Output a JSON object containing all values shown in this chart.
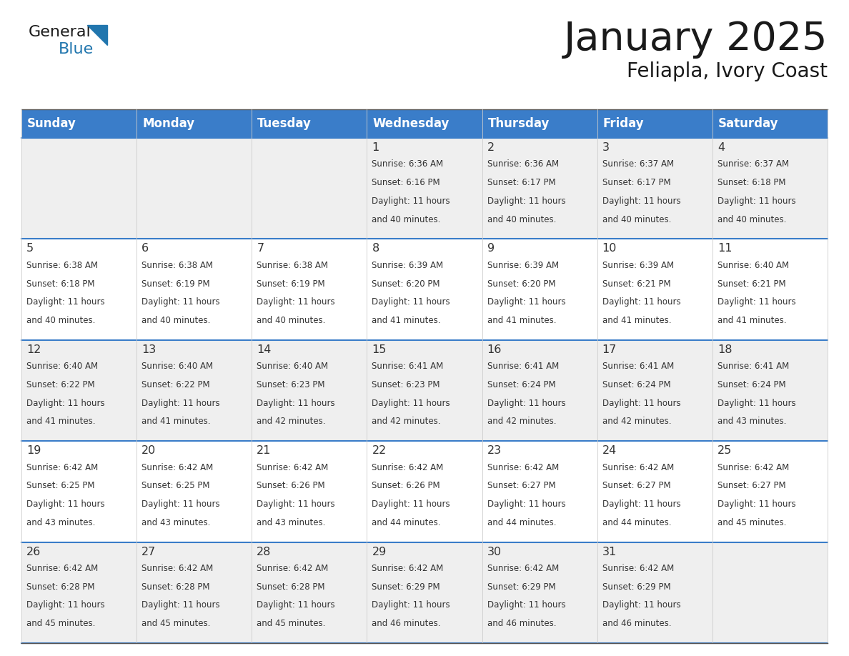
{
  "title": "January 2025",
  "subtitle": "Feliapla, Ivory Coast",
  "header_bg": "#3A7DC9",
  "header_text": "#FFFFFF",
  "row_bg_odd": "#EFEFEF",
  "row_bg_even": "#FFFFFF",
  "blue_line_color": "#3A7DC9",
  "day_headers": [
    "Sunday",
    "Monday",
    "Tuesday",
    "Wednesday",
    "Thursday",
    "Friday",
    "Saturday"
  ],
  "days": [
    {
      "date": 1,
      "col": 3,
      "row": 0,
      "sunrise": "6:36 AM",
      "sunset": "6:16 PM",
      "daylight_h": "11 hours",
      "daylight_m": "and 40 minutes."
    },
    {
      "date": 2,
      "col": 4,
      "row": 0,
      "sunrise": "6:36 AM",
      "sunset": "6:17 PM",
      "daylight_h": "11 hours",
      "daylight_m": "and 40 minutes."
    },
    {
      "date": 3,
      "col": 5,
      "row": 0,
      "sunrise": "6:37 AM",
      "sunset": "6:17 PM",
      "daylight_h": "11 hours",
      "daylight_m": "and 40 minutes."
    },
    {
      "date": 4,
      "col": 6,
      "row": 0,
      "sunrise": "6:37 AM",
      "sunset": "6:18 PM",
      "daylight_h": "11 hours",
      "daylight_m": "and 40 minutes."
    },
    {
      "date": 5,
      "col": 0,
      "row": 1,
      "sunrise": "6:38 AM",
      "sunset": "6:18 PM",
      "daylight_h": "11 hours",
      "daylight_m": "and 40 minutes."
    },
    {
      "date": 6,
      "col": 1,
      "row": 1,
      "sunrise": "6:38 AM",
      "sunset": "6:19 PM",
      "daylight_h": "11 hours",
      "daylight_m": "and 40 minutes."
    },
    {
      "date": 7,
      "col": 2,
      "row": 1,
      "sunrise": "6:38 AM",
      "sunset": "6:19 PM",
      "daylight_h": "11 hours",
      "daylight_m": "and 40 minutes."
    },
    {
      "date": 8,
      "col": 3,
      "row": 1,
      "sunrise": "6:39 AM",
      "sunset": "6:20 PM",
      "daylight_h": "11 hours",
      "daylight_m": "and 41 minutes."
    },
    {
      "date": 9,
      "col": 4,
      "row": 1,
      "sunrise": "6:39 AM",
      "sunset": "6:20 PM",
      "daylight_h": "11 hours",
      "daylight_m": "and 41 minutes."
    },
    {
      "date": 10,
      "col": 5,
      "row": 1,
      "sunrise": "6:39 AM",
      "sunset": "6:21 PM",
      "daylight_h": "11 hours",
      "daylight_m": "and 41 minutes."
    },
    {
      "date": 11,
      "col": 6,
      "row": 1,
      "sunrise": "6:40 AM",
      "sunset": "6:21 PM",
      "daylight_h": "11 hours",
      "daylight_m": "and 41 minutes."
    },
    {
      "date": 12,
      "col": 0,
      "row": 2,
      "sunrise": "6:40 AM",
      "sunset": "6:22 PM",
      "daylight_h": "11 hours",
      "daylight_m": "and 41 minutes."
    },
    {
      "date": 13,
      "col": 1,
      "row": 2,
      "sunrise": "6:40 AM",
      "sunset": "6:22 PM",
      "daylight_h": "11 hours",
      "daylight_m": "and 41 minutes."
    },
    {
      "date": 14,
      "col": 2,
      "row": 2,
      "sunrise": "6:40 AM",
      "sunset": "6:23 PM",
      "daylight_h": "11 hours",
      "daylight_m": "and 42 minutes."
    },
    {
      "date": 15,
      "col": 3,
      "row": 2,
      "sunrise": "6:41 AM",
      "sunset": "6:23 PM",
      "daylight_h": "11 hours",
      "daylight_m": "and 42 minutes."
    },
    {
      "date": 16,
      "col": 4,
      "row": 2,
      "sunrise": "6:41 AM",
      "sunset": "6:24 PM",
      "daylight_h": "11 hours",
      "daylight_m": "and 42 minutes."
    },
    {
      "date": 17,
      "col": 5,
      "row": 2,
      "sunrise": "6:41 AM",
      "sunset": "6:24 PM",
      "daylight_h": "11 hours",
      "daylight_m": "and 42 minutes."
    },
    {
      "date": 18,
      "col": 6,
      "row": 2,
      "sunrise": "6:41 AM",
      "sunset": "6:24 PM",
      "daylight_h": "11 hours",
      "daylight_m": "and 43 minutes."
    },
    {
      "date": 19,
      "col": 0,
      "row": 3,
      "sunrise": "6:42 AM",
      "sunset": "6:25 PM",
      "daylight_h": "11 hours",
      "daylight_m": "and 43 minutes."
    },
    {
      "date": 20,
      "col": 1,
      "row": 3,
      "sunrise": "6:42 AM",
      "sunset": "6:25 PM",
      "daylight_h": "11 hours",
      "daylight_m": "and 43 minutes."
    },
    {
      "date": 21,
      "col": 2,
      "row": 3,
      "sunrise": "6:42 AM",
      "sunset": "6:26 PM",
      "daylight_h": "11 hours",
      "daylight_m": "and 43 minutes."
    },
    {
      "date": 22,
      "col": 3,
      "row": 3,
      "sunrise": "6:42 AM",
      "sunset": "6:26 PM",
      "daylight_h": "11 hours",
      "daylight_m": "and 44 minutes."
    },
    {
      "date": 23,
      "col": 4,
      "row": 3,
      "sunrise": "6:42 AM",
      "sunset": "6:27 PM",
      "daylight_h": "11 hours",
      "daylight_m": "and 44 minutes."
    },
    {
      "date": 24,
      "col": 5,
      "row": 3,
      "sunrise": "6:42 AM",
      "sunset": "6:27 PM",
      "daylight_h": "11 hours",
      "daylight_m": "and 44 minutes."
    },
    {
      "date": 25,
      "col": 6,
      "row": 3,
      "sunrise": "6:42 AM",
      "sunset": "6:27 PM",
      "daylight_h": "11 hours",
      "daylight_m": "and 45 minutes."
    },
    {
      "date": 26,
      "col": 0,
      "row": 4,
      "sunrise": "6:42 AM",
      "sunset": "6:28 PM",
      "daylight_h": "11 hours",
      "daylight_m": "and 45 minutes."
    },
    {
      "date": 27,
      "col": 1,
      "row": 4,
      "sunrise": "6:42 AM",
      "sunset": "6:28 PM",
      "daylight_h": "11 hours",
      "daylight_m": "and 45 minutes."
    },
    {
      "date": 28,
      "col": 2,
      "row": 4,
      "sunrise": "6:42 AM",
      "sunset": "6:28 PM",
      "daylight_h": "11 hours",
      "daylight_m": "and 45 minutes."
    },
    {
      "date": 29,
      "col": 3,
      "row": 4,
      "sunrise": "6:42 AM",
      "sunset": "6:29 PM",
      "daylight_h": "11 hours",
      "daylight_m": "and 46 minutes."
    },
    {
      "date": 30,
      "col": 4,
      "row": 4,
      "sunrise": "6:42 AM",
      "sunset": "6:29 PM",
      "daylight_h": "11 hours",
      "daylight_m": "and 46 minutes."
    },
    {
      "date": 31,
      "col": 5,
      "row": 4,
      "sunrise": "6:42 AM",
      "sunset": "6:29 PM",
      "daylight_h": "11 hours",
      "daylight_m": "and 46 minutes."
    }
  ],
  "logo_general_color": "#1a1a1a",
  "logo_blue_color": "#2176AE",
  "logo_triangle_color": "#2176AE"
}
